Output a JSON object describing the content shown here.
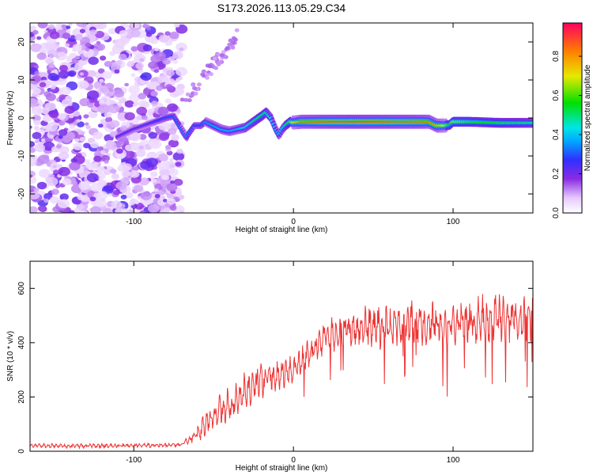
{
  "title": "S173.2026.113.05.29.C34",
  "chart_data": [
    {
      "type": "heatmap",
      "name": "spectrogram",
      "xlabel": "Height of straight line (km)",
      "ylabel": "Frequency (Hz)",
      "xlim": [
        -165,
        150
      ],
      "ylim": [
        -25,
        25
      ],
      "xticks": [
        -100,
        0,
        100
      ],
      "yticks": [
        -20,
        -10,
        0,
        10,
        20
      ],
      "colorbar": {
        "label": "Normalized spectral amplitude",
        "range": [
          0,
          0.97
        ],
        "ticks": [
          0.0,
          0.2,
          0.4,
          0.6,
          0.8
        ]
      },
      "ridge": {
        "description_points_x": [
          -110,
          -100,
          -90,
          -80,
          -75,
          -70,
          -67,
          -62,
          -58,
          -55,
          -50,
          -45,
          -40,
          -35,
          -30,
          -25,
          -20,
          -17,
          -14,
          -11,
          -9,
          -7,
          -5,
          -2,
          0,
          5,
          20,
          40,
          60,
          80,
          85,
          90,
          95,
          98,
          100,
          110,
          130,
          150
        ],
        "description_points_y": [
          -5,
          -3,
          -1.5,
          0,
          0.5,
          -3,
          -5,
          -2,
          -2,
          -1,
          -2,
          -3,
          -3.5,
          -3,
          -2.5,
          -1,
          0.5,
          1.5,
          0,
          -3,
          -4.5,
          -3,
          -2,
          -1,
          -1.2,
          -1,
          -1,
          -1,
          -1,
          -1,
          -1,
          -2,
          -2,
          -1.8,
          -1,
          -1,
          -1.3,
          -1.3
        ],
        "amplitude": [
          0.25,
          0.25,
          0.25,
          0.3,
          0.3,
          0.35,
          0.35,
          0.3,
          0.3,
          0.35,
          0.4,
          0.4,
          0.4,
          0.4,
          0.45,
          0.5,
          0.55,
          0.5,
          0.45,
          0.4,
          0.4,
          0.45,
          0.5,
          0.6,
          0.7,
          0.85,
          0.9,
          0.92,
          0.9,
          0.88,
          0.85,
          0.8,
          0.7,
          0.55,
          0.65,
          0.6,
          0.55,
          0.5
        ]
      }
    },
    {
      "type": "line",
      "name": "snr",
      "xlabel": "Height of straight line (km)",
      "ylabel": "SNR (10 * v/v)",
      "xlim": [
        -165,
        150
      ],
      "ylim": [
        0,
        700
      ],
      "xticks": [
        -100,
        0,
        100
      ],
      "yticks": [
        0,
        200,
        400,
        600
      ],
      "color": "#ee3333",
      "envelope_x": [
        -165,
        -120,
        -80,
        -70,
        -65,
        -60,
        -55,
        -50,
        -45,
        -40,
        -35,
        -30,
        -25,
        -20,
        -15,
        -10,
        -5,
        0,
        5,
        10,
        15,
        20,
        30,
        40,
        50,
        60,
        70,
        80,
        90,
        100,
        110,
        120,
        130,
        140,
        150
      ],
      "envelope_mean": [
        20,
        20,
        22,
        25,
        40,
        70,
        100,
        130,
        160,
        170,
        190,
        220,
        240,
        260,
        270,
        280,
        290,
        300,
        330,
        360,
        390,
        420,
        440,
        450,
        460,
        460,
        470,
        470,
        470,
        470,
        480,
        480,
        490,
        490,
        500
      ],
      "envelope_spread": [
        15,
        15,
        15,
        15,
        30,
        60,
        80,
        100,
        120,
        120,
        130,
        130,
        120,
        120,
        110,
        110,
        110,
        100,
        100,
        100,
        100,
        110,
        130,
        140,
        150,
        150,
        150,
        150,
        150,
        150,
        160,
        170,
        170,
        170,
        170
      ]
    }
  ]
}
